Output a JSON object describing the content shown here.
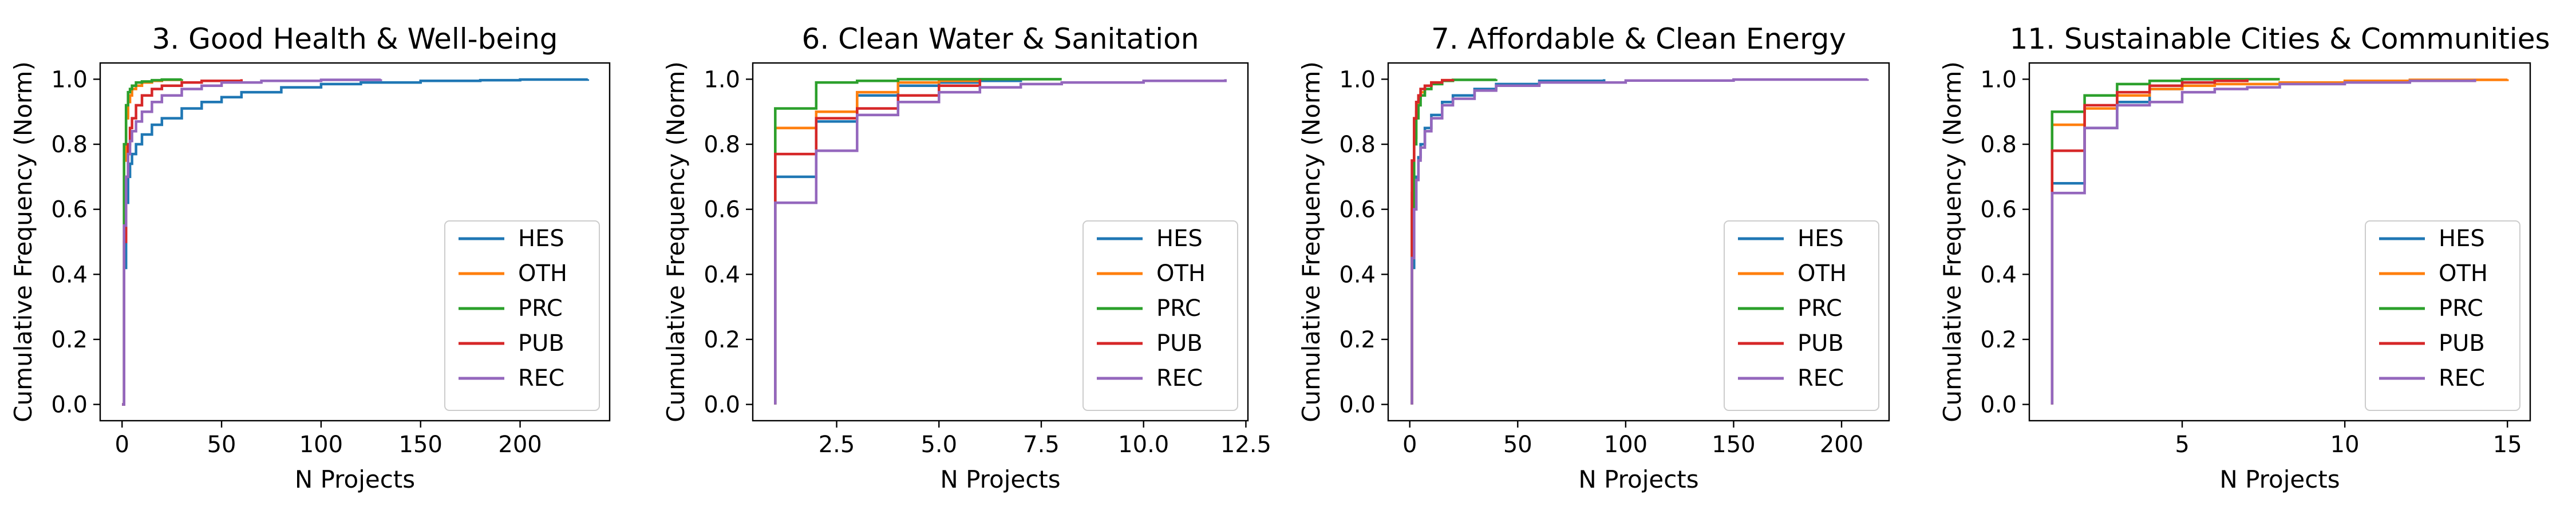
{
  "chart_data": [
    {
      "type": "line",
      "title": "3. Good Health & Well-being",
      "xlabel": "N Projects",
      "ylabel": "Cumulative Frequency (Norm)",
      "xlim": [
        -11,
        245
      ],
      "ylim": [
        -0.05,
        1.05
      ],
      "xticks": [
        0,
        50,
        100,
        150,
        200
      ],
      "yticks": [
        0.0,
        0.2,
        0.4,
        0.6,
        0.8,
        1.0
      ],
      "grid": false,
      "legend_position": "lower-right",
      "series": [
        {
          "name": "HES",
          "color": "#1f77b4",
          "x": [
            0,
            1,
            2,
            3,
            4,
            5,
            7,
            10,
            15,
            20,
            30,
            40,
            50,
            60,
            80,
            100,
            120,
            150,
            180,
            200,
            234
          ],
          "y": [
            0,
            0.42,
            0.62,
            0.7,
            0.74,
            0.77,
            0.8,
            0.83,
            0.86,
            0.88,
            0.91,
            0.93,
            0.945,
            0.96,
            0.975,
            0.985,
            0.99,
            0.995,
            0.997,
            0.999,
            1.0
          ]
        },
        {
          "name": "OTH",
          "color": "#ff7f0e",
          "x": [
            0,
            1,
            2,
            3,
            4,
            5,
            7,
            10,
            15,
            20,
            30
          ],
          "y": [
            0,
            0.75,
            0.88,
            0.93,
            0.95,
            0.97,
            0.98,
            0.99,
            0.995,
            0.998,
            1.0
          ]
        },
        {
          "name": "PRC",
          "color": "#2ca02c",
          "x": [
            0,
            1,
            2,
            3,
            4,
            5,
            7,
            10,
            15,
            20,
            30
          ],
          "y": [
            0,
            0.8,
            0.92,
            0.96,
            0.97,
            0.98,
            0.99,
            0.993,
            0.997,
            0.999,
            1.0
          ]
        },
        {
          "name": "PUB",
          "color": "#d62728",
          "x": [
            0,
            1,
            2,
            3,
            4,
            5,
            7,
            10,
            15,
            20,
            30,
            40,
            60
          ],
          "y": [
            0,
            0.5,
            0.7,
            0.8,
            0.85,
            0.88,
            0.92,
            0.95,
            0.97,
            0.98,
            0.99,
            0.995,
            1.0
          ]
        },
        {
          "name": "REC",
          "color": "#9467bd",
          "x": [
            0,
            1,
            2,
            3,
            4,
            5,
            7,
            10,
            15,
            20,
            30,
            40,
            50,
            70,
            100,
            130
          ],
          "y": [
            0,
            0.55,
            0.7,
            0.77,
            0.81,
            0.84,
            0.87,
            0.9,
            0.93,
            0.95,
            0.97,
            0.98,
            0.99,
            0.995,
            0.998,
            1.0
          ]
        }
      ]
    },
    {
      "type": "line",
      "title": "6. Clean Water & Sanitation",
      "xlabel": "N Projects",
      "ylabel": "Cumulative Frequency (Norm)",
      "xlim": [
        0.45,
        12.55
      ],
      "ylim": [
        -0.05,
        1.05
      ],
      "xticks": [
        2.5,
        5.0,
        7.5,
        10.0,
        12.5
      ],
      "yticks": [
        0.0,
        0.2,
        0.4,
        0.6,
        0.8,
        1.0
      ],
      "grid": false,
      "legend_position": "lower-right",
      "series": [
        {
          "name": "HES",
          "color": "#1f77b4",
          "x": [
            1,
            1,
            2,
            3,
            4,
            5,
            6,
            7
          ],
          "y": [
            0,
            0.7,
            0.87,
            0.95,
            0.98,
            0.99,
            0.995,
            1.0
          ]
        },
        {
          "name": "OTH",
          "color": "#ff7f0e",
          "x": [
            1,
            1,
            2,
            3,
            4,
            5,
            6
          ],
          "y": [
            0,
            0.85,
            0.9,
            0.96,
            0.99,
            0.995,
            1.0
          ]
        },
        {
          "name": "PRC",
          "color": "#2ca02c",
          "x": [
            1,
            1,
            2,
            3,
            4,
            5,
            6,
            8
          ],
          "y": [
            0,
            0.91,
            0.99,
            0.995,
            1.0,
            1.0,
            1.0,
            1.0
          ]
        },
        {
          "name": "PUB",
          "color": "#d62728",
          "x": [
            1,
            1,
            2,
            3,
            4,
            5,
            6
          ],
          "y": [
            0,
            0.77,
            0.88,
            0.91,
            0.95,
            0.98,
            1.0
          ]
        },
        {
          "name": "REC",
          "color": "#9467bd",
          "x": [
            1,
            1,
            2,
            3,
            4,
            5,
            6,
            7,
            8,
            10,
            12
          ],
          "y": [
            0,
            0.62,
            0.78,
            0.89,
            0.93,
            0.96,
            0.975,
            0.985,
            0.99,
            0.995,
            1.0
          ]
        }
      ]
    },
    {
      "type": "line",
      "title": "7. Affordable & Clean Energy",
      "xlabel": "N Projects",
      "ylabel": "Cumulative Frequency (Norm)",
      "xlim": [
        -10,
        222
      ],
      "ylim": [
        -0.05,
        1.05
      ],
      "xticks": [
        0,
        50,
        100,
        150,
        200
      ],
      "yticks": [
        0.0,
        0.2,
        0.4,
        0.6,
        0.8,
        1.0
      ],
      "grid": false,
      "legend_position": "lower-right",
      "series": [
        {
          "name": "HES",
          "color": "#1f77b4",
          "x": [
            1,
            1,
            2,
            3,
            4,
            5,
            7,
            10,
            15,
            20,
            30,
            40,
            60,
            90
          ],
          "y": [
            0,
            0.42,
            0.6,
            0.7,
            0.76,
            0.8,
            0.85,
            0.89,
            0.93,
            0.95,
            0.97,
            0.985,
            0.995,
            1.0
          ]
        },
        {
          "name": "OTH",
          "color": "#ff7f0e",
          "x": [
            1,
            1,
            2,
            3,
            4,
            5,
            7,
            10,
            15,
            20
          ],
          "y": [
            0,
            0.65,
            0.82,
            0.9,
            0.94,
            0.96,
            0.98,
            0.99,
            0.997,
            1.0
          ]
        },
        {
          "name": "PRC",
          "color": "#2ca02c",
          "x": [
            1,
            1,
            2,
            3,
            4,
            5,
            7,
            10,
            15,
            20,
            40
          ],
          "y": [
            0,
            0.6,
            0.8,
            0.88,
            0.92,
            0.95,
            0.97,
            0.985,
            0.995,
            0.998,
            1.0
          ]
        },
        {
          "name": "PUB",
          "color": "#d62728",
          "x": [
            1,
            1,
            2,
            3,
            4,
            5,
            7,
            10,
            15,
            20
          ],
          "y": [
            0,
            0.75,
            0.88,
            0.93,
            0.95,
            0.97,
            0.98,
            0.99,
            0.997,
            1.0
          ]
        },
        {
          "name": "REC",
          "color": "#9467bd",
          "x": [
            1,
            1,
            2,
            3,
            4,
            5,
            7,
            10,
            15,
            20,
            30,
            40,
            60,
            100,
            150,
            212
          ],
          "y": [
            0,
            0.45,
            0.6,
            0.69,
            0.75,
            0.79,
            0.84,
            0.88,
            0.92,
            0.94,
            0.965,
            0.98,
            0.99,
            0.996,
            0.999,
            1.0
          ]
        }
      ]
    },
    {
      "type": "line",
      "title": "11.  Sustainable Cities & Communities",
      "xlabel": "N Projects",
      "ylabel": "Cumulative Frequency (Norm)",
      "xlim": [
        0.3,
        15.7
      ],
      "ylim": [
        -0.05,
        1.05
      ],
      "xticks": [
        5,
        10,
        15
      ],
      "yticks": [
        0.0,
        0.2,
        0.4,
        0.6,
        0.8,
        1.0
      ],
      "grid": false,
      "legend_position": "lower-right",
      "series": [
        {
          "name": "HES",
          "color": "#1f77b4",
          "x": [
            1,
            1,
            2,
            3,
            4,
            5,
            6,
            7
          ],
          "y": [
            0,
            0.68,
            0.85,
            0.93,
            0.97,
            0.99,
            0.995,
            1.0
          ]
        },
        {
          "name": "OTH",
          "color": "#ff7f0e",
          "x": [
            1,
            1,
            2,
            3,
            4,
            5,
            6,
            8,
            10,
            12,
            15
          ],
          "y": [
            0,
            0.86,
            0.91,
            0.95,
            0.97,
            0.98,
            0.985,
            0.99,
            0.995,
            0.998,
            1.0
          ]
        },
        {
          "name": "PRC",
          "color": "#2ca02c",
          "x": [
            1,
            1,
            2,
            3,
            4,
            5,
            6,
            8
          ],
          "y": [
            0,
            0.9,
            0.95,
            0.985,
            0.995,
            1.0,
            1.0,
            1.0
          ]
        },
        {
          "name": "PUB",
          "color": "#d62728",
          "x": [
            1,
            1,
            2,
            3,
            4,
            5,
            6,
            7
          ],
          "y": [
            0,
            0.78,
            0.92,
            0.96,
            0.98,
            0.99,
            0.995,
            1.0
          ]
        },
        {
          "name": "REC",
          "color": "#9467bd",
          "x": [
            1,
            1,
            2,
            3,
            4,
            5,
            6,
            7,
            8,
            10,
            12,
            14
          ],
          "y": [
            0,
            0.65,
            0.85,
            0.92,
            0.93,
            0.96,
            0.97,
            0.975,
            0.985,
            0.99,
            0.995,
            1.0
          ]
        }
      ]
    }
  ]
}
